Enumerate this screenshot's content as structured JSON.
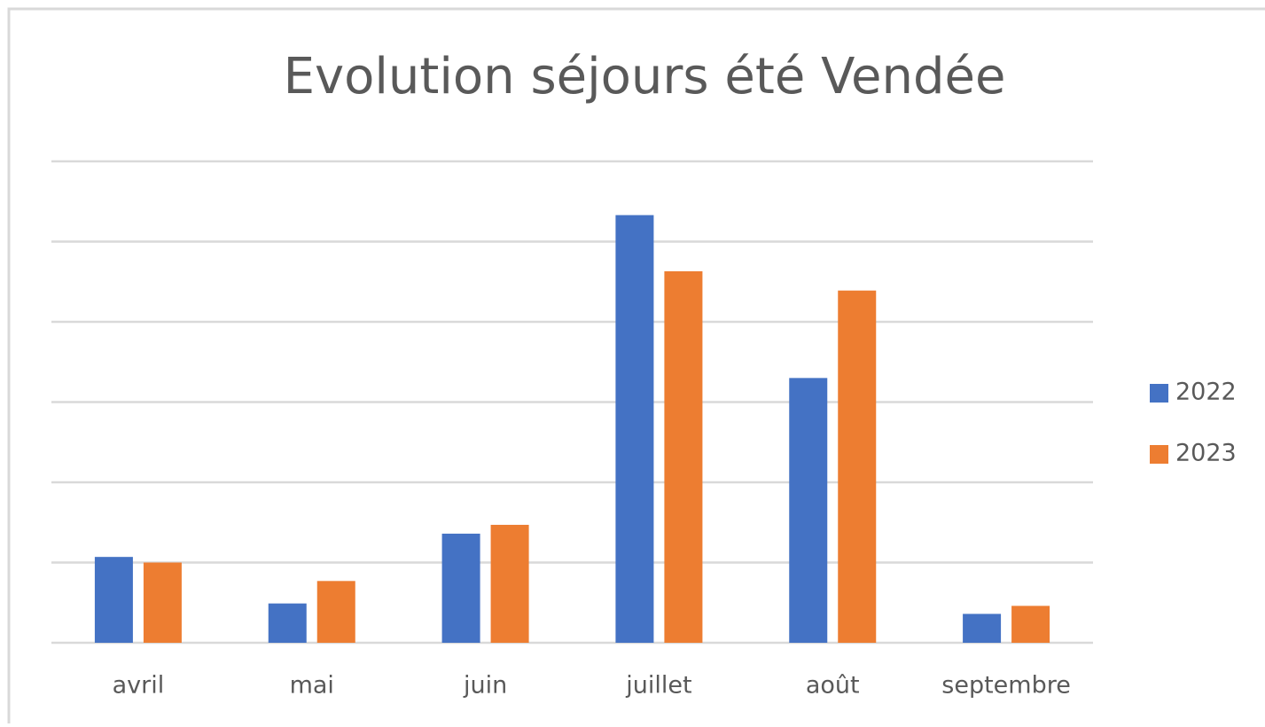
{
  "chart_data": {
    "type": "bar",
    "title": "Evolution séjours été Vendée",
    "categories": [
      "avril",
      "mai",
      "juin",
      "juillet",
      "août",
      "septembre"
    ],
    "series": [
      {
        "name": "2022",
        "color": "#4472c4",
        "values": [
          1.07,
          0.49,
          1.36,
          5.33,
          3.3,
          0.36
        ]
      },
      {
        "name": "2023",
        "color": "#ed7d31",
        "values": [
          1.0,
          0.77,
          1.47,
          4.63,
          4.39,
          0.46
        ]
      }
    ],
    "ylim": [
      0,
      6
    ],
    "yticks": [
      0,
      1,
      2,
      3,
      4,
      5,
      6
    ],
    "grid": true,
    "legend": "right"
  }
}
